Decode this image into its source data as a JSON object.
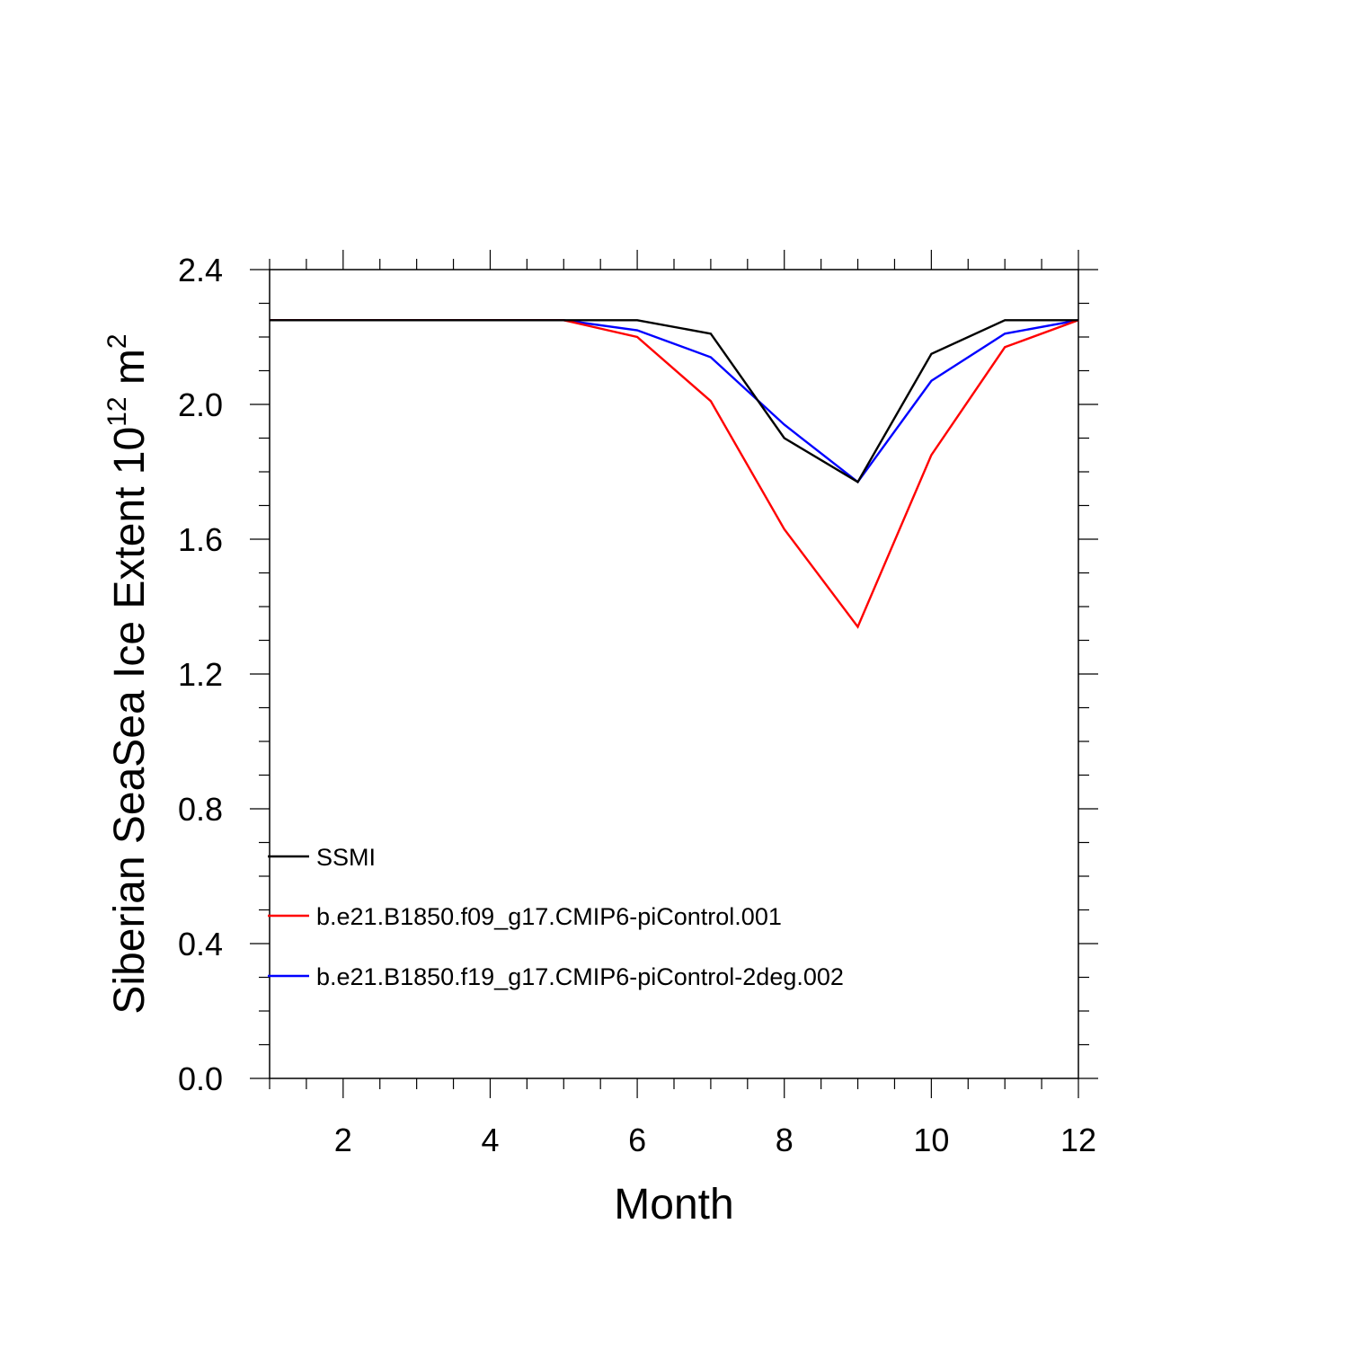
{
  "chart_data": {
    "type": "line",
    "xlabel": "Month",
    "ylabel": {
      "text": "Siberian SeaSea Ice Extent 10",
      "sup1": "12",
      "mid": " m",
      "sup2": "2"
    },
    "xlim": [
      1,
      12
    ],
    "ylim": [
      0,
      2.4
    ],
    "xticks": [
      2,
      4,
      6,
      8,
      10,
      12
    ],
    "xtick_labels": [
      "2",
      "4",
      "6",
      "8",
      "10",
      "12"
    ],
    "yticks": [
      0,
      0.4,
      0.8,
      1.2,
      1.6,
      2.0,
      2.4
    ],
    "ytick_labels": [
      "0.0",
      "0.4",
      "0.8",
      "1.2",
      "1.6",
      "2.0",
      "2.4"
    ],
    "x": [
      1,
      2,
      3,
      4,
      5,
      6,
      7,
      8,
      9,
      10,
      11,
      12
    ],
    "series": [
      {
        "name": "SSMI",
        "color": "#000000",
        "values": [
          2.25,
          2.25,
          2.25,
          2.25,
          2.25,
          2.25,
          2.21,
          1.9,
          1.77,
          2.15,
          2.25,
          2.25
        ]
      },
      {
        "name": "b.e21.B1850.f09_g17.CMIP6-piControl.001",
        "color": "#ff0000",
        "values": [
          2.25,
          2.25,
          2.25,
          2.25,
          2.25,
          2.2,
          2.01,
          1.63,
          1.34,
          1.85,
          2.17,
          2.25
        ]
      },
      {
        "name": "b.e21.B1850.f19_g17.CMIP6-piControl-2deg.002",
        "color": "#0000ff",
        "values": [
          2.25,
          2.25,
          2.25,
          2.25,
          2.25,
          2.22,
          2.14,
          1.94,
          1.77,
          2.07,
          2.21,
          2.25
        ]
      }
    ],
    "legend_position": "lower-left",
    "grid": false
  }
}
